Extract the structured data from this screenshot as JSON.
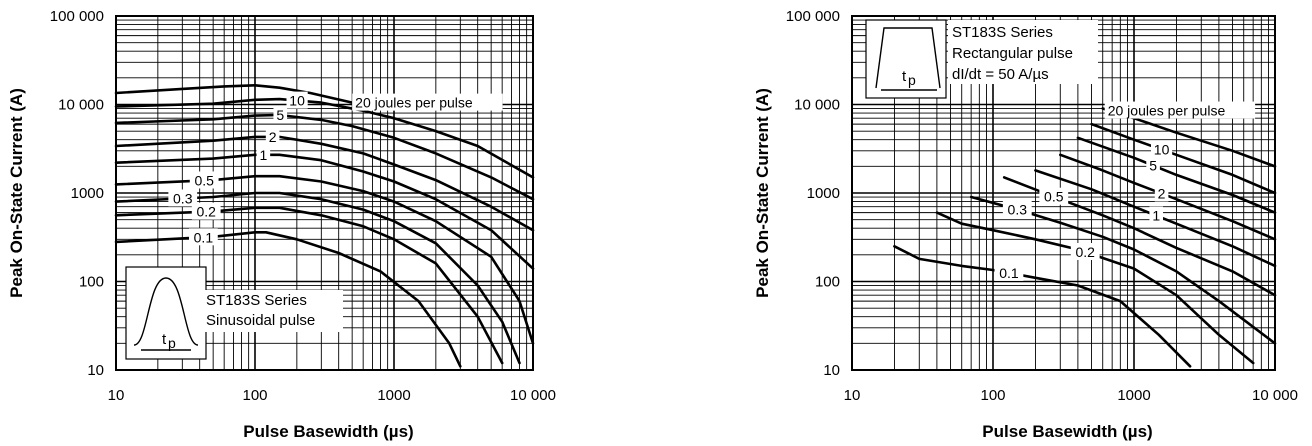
{
  "chart_data": [
    {
      "type": "line",
      "xscale": "log",
      "yscale": "log",
      "xlim": [
        10,
        10000
      ],
      "ylim": [
        10,
        100000
      ],
      "x_ticks": [
        "10",
        "100",
        "1000",
        "10 000"
      ],
      "y_ticks": [
        "10",
        "100",
        "1000",
        "10 000",
        "100 000"
      ],
      "xlabel": "Pulse Basewidth (µs)",
      "ylabel": "Peak On-State Current (A)",
      "grid": true,
      "annotation": {
        "lines": [
          "ST183S Series",
          "Sinusoidal pulse"
        ]
      },
      "inset_label": "t",
      "inset_subscript": "p",
      "series": [
        {
          "name": "20 joules per pulse",
          "x": [
            10,
            30,
            60,
            100,
            150,
            250,
            500
          ],
          "y": [
            13500,
            15000,
            16000,
            16500,
            15500,
            13500,
            10500
          ]
        },
        {
          "name": "10",
          "x": [
            10,
            50,
            100,
            150,
            300,
            600,
            1000,
            2000,
            4000,
            10000
          ],
          "y": [
            9500,
            10200,
            11300,
            11500,
            10500,
            8500,
            7000,
            5000,
            3400,
            1500
          ]
        },
        {
          "name": "5",
          "x": [
            10,
            50,
            100,
            150,
            300,
            500,
            1000,
            2000,
            5000,
            10000
          ],
          "y": [
            6200,
            6800,
            7500,
            7600,
            6700,
            5700,
            4200,
            2800,
            1500,
            850
          ]
        },
        {
          "name": "2",
          "x": [
            10,
            50,
            100,
            150,
            300,
            600,
            1000,
            2000,
            5000,
            10000
          ],
          "y": [
            3400,
            3900,
            4300,
            4300,
            3600,
            2800,
            2100,
            1400,
            700,
            380
          ]
        },
        {
          "name": "1",
          "x": [
            10,
            50,
            100,
            150,
            300,
            600,
            1000,
            2000,
            5000,
            10000
          ],
          "y": [
            2200,
            2450,
            2700,
            2700,
            2350,
            1750,
            1350,
            850,
            380,
            140
          ]
        },
        {
          "name": "0.5",
          "x": [
            10,
            50,
            100,
            150,
            300,
            600,
            1000,
            2000,
            5000,
            8000,
            10000
          ],
          "y": [
            1250,
            1400,
            1550,
            1550,
            1350,
            1050,
            800,
            480,
            190,
            60,
            20
          ]
        },
        {
          "name": "0.3",
          "x": [
            10,
            50,
            100,
            150,
            300,
            600,
            1000,
            2000,
            4000,
            6000,
            8000
          ],
          "y": [
            800,
            900,
            1000,
            1000,
            850,
            650,
            480,
            270,
            90,
            35,
            12
          ]
        },
        {
          "name": "0.2",
          "x": [
            10,
            50,
            100,
            150,
            300,
            600,
            1000,
            2000,
            4000,
            6000
          ],
          "y": [
            560,
            620,
            680,
            680,
            560,
            420,
            300,
            160,
            40,
            12
          ]
        },
        {
          "name": "0.1",
          "x": [
            10,
            50,
            100,
            120,
            200,
            400,
            800,
            1500,
            2500,
            3000
          ],
          "y": [
            280,
            320,
            360,
            360,
            300,
            210,
            130,
            60,
            20,
            11
          ]
        }
      ]
    },
    {
      "type": "line",
      "xscale": "log",
      "yscale": "log",
      "xlim": [
        10,
        10000
      ],
      "ylim": [
        10,
        100000
      ],
      "x_ticks": [
        "10",
        "100",
        "1000",
        "10 000"
      ],
      "y_ticks": [
        "10",
        "100",
        "1000",
        "10 000",
        "100 000"
      ],
      "xlabel": "Pulse Basewidth (µs)",
      "ylabel": "Peak On-State Current (A)",
      "grid": true,
      "annotation": {
        "lines": [
          "ST183S Series",
          "Rectangular pulse",
          "dI/dt = 50 A/µs"
        ]
      },
      "inset_label": "t",
      "inset_subscript": "p",
      "series": [
        {
          "name": "20 joules per pulse",
          "x": [
            600,
            1000,
            2000,
            5000,
            10000
          ],
          "y": [
            9000,
            7000,
            4800,
            3000,
            2000
          ]
        },
        {
          "name": "10",
          "x": [
            500,
            1000,
            2000,
            5000,
            10000
          ],
          "y": [
            6000,
            4000,
            2700,
            1600,
            1000
          ]
        },
        {
          "name": "5",
          "x": [
            400,
            1000,
            2000,
            5000,
            10000
          ],
          "y": [
            4200,
            2500,
            1600,
            950,
            600
          ]
        },
        {
          "name": "2",
          "x": [
            300,
            600,
            1000,
            2000,
            5000,
            10000
          ],
          "y": [
            2700,
            1800,
            1300,
            850,
            480,
            300
          ]
        },
        {
          "name": "1",
          "x": [
            200,
            500,
            1000,
            2000,
            5000,
            10000
          ],
          "y": [
            1800,
            1100,
            700,
            450,
            250,
            150
          ]
        },
        {
          "name": "0.5",
          "x": [
            120,
            300,
            600,
            1000,
            2000,
            5000,
            10000
          ],
          "y": [
            1500,
            850,
            560,
            400,
            240,
            130,
            70
          ]
        },
        {
          "name": "0.3",
          "x": [
            70,
            150,
            300,
            600,
            1000,
            2000,
            4000,
            10000
          ],
          "y": [
            900,
            650,
            460,
            320,
            230,
            130,
            60,
            20
          ]
        },
        {
          "name": "0.2",
          "x": [
            40,
            60,
            100,
            200,
            400,
            1000,
            2000,
            4000,
            7000
          ],
          "y": [
            600,
            450,
            380,
            300,
            230,
            140,
            70,
            25,
            12
          ]
        },
        {
          "name": "0.1",
          "x": [
            20,
            30,
            60,
            100,
            200,
            400,
            800,
            1500,
            2500
          ],
          "y": [
            250,
            180,
            150,
            135,
            110,
            90,
            60,
            25,
            11
          ]
        }
      ]
    }
  ]
}
